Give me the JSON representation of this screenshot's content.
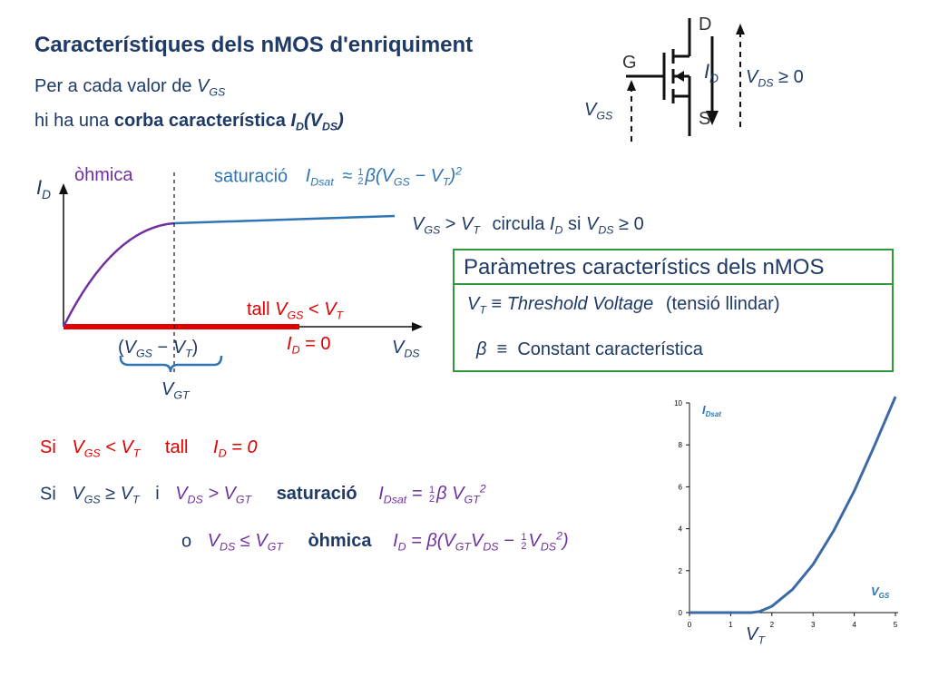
{
  "title": "Característiques dels nMOS d'enriquiment",
  "intro": {
    "line1": "Per a cada valor de",
    "line2_pre": "hi ha una",
    "line2_bold": "corba característica"
  },
  "mosfet": {
    "drain": "D",
    "gate": "G",
    "source": "S",
    "vds_cond": "≥ 0"
  },
  "curve_plot": {
    "ohmic": "òhmica",
    "saturation": "saturació",
    "approx": "≈",
    "cond_text": "circula",
    "cond_si": "si",
    "cutoff": "tall",
    "id_zero": "= 0"
  },
  "params": {
    "header": "Paràmetres característics dels nMOS",
    "vt_name": "Threshold Voltage",
    "vt_paren": "(tensió llindar)",
    "beta_name": "Constant característica"
  },
  "rules": {
    "si": "Si",
    "tall": "tall",
    "i": "i",
    "saturacio": "saturació",
    "o": "o",
    "ohmica": "òhmica"
  },
  "colors": {
    "title": "#1f3a66",
    "ohmic": "#7030a0",
    "saturation": "#2e75b6",
    "cutoff": "#e00000",
    "params_border": "#2e9a3a"
  },
  "chart_data": {
    "type": "line",
    "x_ticks": [
      "0",
      "1",
      "2",
      "3",
      "4",
      "5"
    ],
    "y_ticks": [
      "0",
      "2",
      "4",
      "6",
      "8",
      "10"
    ],
    "xlim": [
      0,
      5
    ],
    "ylim": [
      0,
      10
    ],
    "x": [
      0,
      1.5,
      1.7,
      2.0,
      2.5,
      3.0,
      3.5,
      4.0,
      4.5,
      5.0
    ],
    "series": [
      {
        "values": [
          0,
          0,
          0.05,
          0.3,
          1.1,
          2.3,
          3.9,
          5.8,
          8.0,
          10.3
        ]
      }
    ],
    "grid": false
  }
}
